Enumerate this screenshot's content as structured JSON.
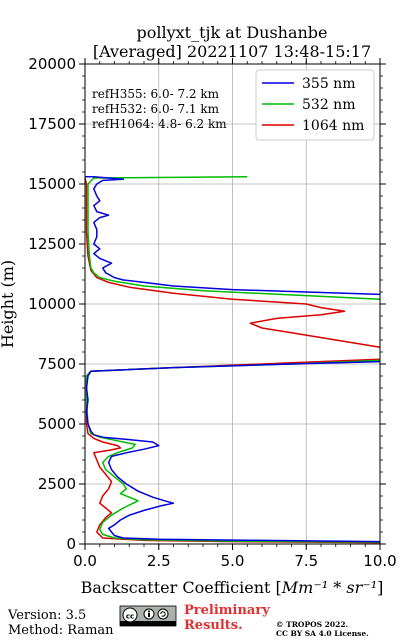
{
  "chart_data": {
    "type": "line",
    "title_line1": "pollyxt_tjk at Dushanbe",
    "title_line2": "[Averaged] 20221107 13:48-15:17",
    "xlabel": "Backscatter Coefficient [",
    "xlabel_unit": "Mm⁻¹ * sr⁻¹",
    "xlabel_end": "]",
    "ylabel": "Height (m)",
    "xlim": [
      0,
      10
    ],
    "ylim": [
      0,
      20000
    ],
    "x_ticks": [
      0,
      2.5,
      5,
      7.5,
      10
    ],
    "x_tick_labels": [
      "0.0",
      "2.5",
      "5.0",
      "7.5",
      "10.0"
    ],
    "y_ticks": [
      0,
      2500,
      5000,
      7500,
      10000,
      12500,
      15000,
      17500,
      20000
    ],
    "y_tick_labels": [
      "0",
      "2500",
      "5000",
      "7500",
      "10000",
      "12500",
      "15000",
      "17500",
      "20000"
    ],
    "grid": true,
    "legend_position": "top-right",
    "ref_heights": [
      "refH355:  6.0- 7.2 km",
      "refH532:  6.0- 7.1 km",
      "refH1064:  4.8- 6.2 km"
    ],
    "series": [
      {
        "name": "355 nm",
        "color": "#0000dd",
        "points": [
          [
            10.0,
            100
          ],
          [
            6.0,
            150
          ],
          [
            2.5,
            200
          ],
          [
            1.3,
            250
          ],
          [
            1.0,
            350
          ],
          [
            0.9,
            500
          ],
          [
            0.8,
            650
          ],
          [
            1.0,
            800
          ],
          [
            1.2,
            1000
          ],
          [
            1.5,
            1200
          ],
          [
            2.0,
            1400
          ],
          [
            2.6,
            1600
          ],
          [
            3.0,
            1700
          ],
          [
            2.7,
            1800
          ],
          [
            2.3,
            1950
          ],
          [
            1.8,
            2200
          ],
          [
            1.4,
            2500
          ],
          [
            1.1,
            2800
          ],
          [
            0.9,
            3100
          ],
          [
            0.8,
            3400
          ],
          [
            0.9,
            3650
          ],
          [
            1.4,
            3800
          ],
          [
            2.0,
            3950
          ],
          [
            2.5,
            4100
          ],
          [
            2.3,
            4250
          ],
          [
            1.5,
            4350
          ],
          [
            0.6,
            4450
          ],
          [
            0.3,
            4550
          ],
          [
            0.2,
            4700
          ],
          [
            0.1,
            5000
          ],
          [
            0.05,
            5500
          ],
          [
            0.1,
            6000
          ],
          [
            0.05,
            6500
          ],
          [
            0.1,
            7000
          ],
          [
            0.2,
            7200
          ],
          [
            3.0,
            7350
          ],
          [
            7.0,
            7500
          ],
          [
            10.0,
            7600
          ]
        ],
        "points_upper": [
          [
            10.0,
            10400
          ],
          [
            7.5,
            10500
          ],
          [
            5.0,
            10600
          ],
          [
            3.0,
            10750
          ],
          [
            2.0,
            10900
          ],
          [
            1.3,
            11000
          ],
          [
            1.0,
            11100
          ],
          [
            0.7,
            11300
          ],
          [
            0.6,
            11500
          ],
          [
            0.9,
            11700
          ],
          [
            0.5,
            11900
          ],
          [
            0.3,
            12100
          ],
          [
            0.5,
            12300
          ],
          [
            0.3,
            12500
          ],
          [
            0.4,
            12800
          ],
          [
            0.4,
            13100
          ],
          [
            0.3,
            13400
          ],
          [
            0.5,
            13600
          ],
          [
            0.8,
            13700
          ],
          [
            0.4,
            13850
          ],
          [
            0.3,
            14100
          ],
          [
            0.5,
            14300
          ],
          [
            0.4,
            14500
          ],
          [
            0.3,
            14800
          ],
          [
            0.4,
            15000
          ],
          [
            0.6,
            15150
          ],
          [
            1.3,
            15200
          ],
          [
            0.3,
            15300
          ],
          [
            0.0,
            15300
          ]
        ]
      },
      {
        "name": "532 nm",
        "color": "#00bb00",
        "points": [
          [
            10.0,
            80
          ],
          [
            5.0,
            120
          ],
          [
            2.0,
            180
          ],
          [
            1.0,
            250
          ],
          [
            0.6,
            400
          ],
          [
            0.5,
            600
          ],
          [
            0.6,
            900
          ],
          [
            0.9,
            1200
          ],
          [
            1.3,
            1500
          ],
          [
            1.8,
            1800
          ],
          [
            1.5,
            1950
          ],
          [
            1.2,
            2100
          ],
          [
            1.4,
            2300
          ],
          [
            1.3,
            2500
          ],
          [
            1.0,
            2800
          ],
          [
            0.7,
            3100
          ],
          [
            0.6,
            3400
          ],
          [
            0.8,
            3650
          ],
          [
            1.2,
            3850
          ],
          [
            1.6,
            4000
          ],
          [
            1.7,
            4150
          ],
          [
            1.1,
            4300
          ],
          [
            0.5,
            4450
          ],
          [
            0.2,
            4600
          ],
          [
            0.1,
            5000
          ],
          [
            0.05,
            6000
          ],
          [
            0.05,
            7000
          ],
          [
            0.2,
            7200
          ],
          [
            3.0,
            7350
          ],
          [
            7.0,
            7500
          ],
          [
            10.0,
            7650
          ]
        ],
        "points_upper": [
          [
            10.0,
            10200
          ],
          [
            7.5,
            10350
          ],
          [
            4.0,
            10550
          ],
          [
            2.0,
            10750
          ],
          [
            1.0,
            10950
          ],
          [
            0.5,
            11100
          ],
          [
            0.3,
            11300
          ],
          [
            0.2,
            11500
          ],
          [
            0.15,
            12000
          ],
          [
            0.1,
            13000
          ],
          [
            0.1,
            14000
          ],
          [
            0.1,
            15000
          ],
          [
            0.3,
            15250
          ],
          [
            5.5,
            15300
          ]
        ]
      },
      {
        "name": "1064 nm",
        "color": "#dd0000",
        "points": [
          [
            10.0,
            60
          ],
          [
            5.0,
            100
          ],
          [
            2.0,
            150
          ],
          [
            0.6,
            250
          ],
          [
            0.4,
            500
          ],
          [
            0.5,
            800
          ],
          [
            0.7,
            1100
          ],
          [
            0.9,
            1300
          ],
          [
            0.7,
            1500
          ],
          [
            0.5,
            1700
          ],
          [
            0.6,
            2000
          ],
          [
            0.8,
            2300
          ],
          [
            0.9,
            2600
          ],
          [
            0.7,
            2900
          ],
          [
            0.5,
            3200
          ],
          [
            0.4,
            3500
          ],
          [
            0.3,
            3800
          ],
          [
            0.8,
            3900
          ],
          [
            1.2,
            4000
          ],
          [
            1.1,
            4100
          ],
          [
            0.6,
            4250
          ],
          [
            0.3,
            4400
          ],
          [
            0.1,
            4600
          ],
          [
            0.05,
            5000
          ],
          [
            0.05,
            6000
          ],
          [
            0.05,
            7000
          ],
          [
            0.2,
            7200
          ],
          [
            3.0,
            7350
          ],
          [
            7.0,
            7550
          ],
          [
            10.0,
            7700
          ]
        ],
        "points_upper": [
          [
            10.0,
            8200
          ],
          [
            8.5,
            8500
          ],
          [
            7.0,
            8800
          ],
          [
            6.0,
            9000
          ],
          [
            5.6,
            9200
          ],
          [
            6.5,
            9400
          ],
          [
            8.0,
            9550
          ],
          [
            8.8,
            9700
          ],
          [
            8.0,
            9850
          ],
          [
            7.5,
            10000
          ],
          [
            5.0,
            10200
          ],
          [
            3.0,
            10450
          ],
          [
            1.5,
            10700
          ],
          [
            0.8,
            10900
          ],
          [
            0.4,
            11100
          ],
          [
            0.2,
            11400
          ],
          [
            0.1,
            12000
          ],
          [
            0.05,
            13000
          ],
          [
            0.05,
            14000
          ],
          [
            0.05,
            15000
          ],
          [
            0.0,
            15250
          ]
        ]
      }
    ]
  },
  "footer": {
    "version": "Version: 3.5",
    "method": "Method: Raman",
    "preliminary": "Preliminary",
    "results": "Results.",
    "copyright_line1": "© TROPOS 2022.",
    "copyright_line2": "CC BY SA 4.0 License.",
    "license_badge": "cc-by-sa-badge",
    "preliminary_color": "#e03030"
  }
}
